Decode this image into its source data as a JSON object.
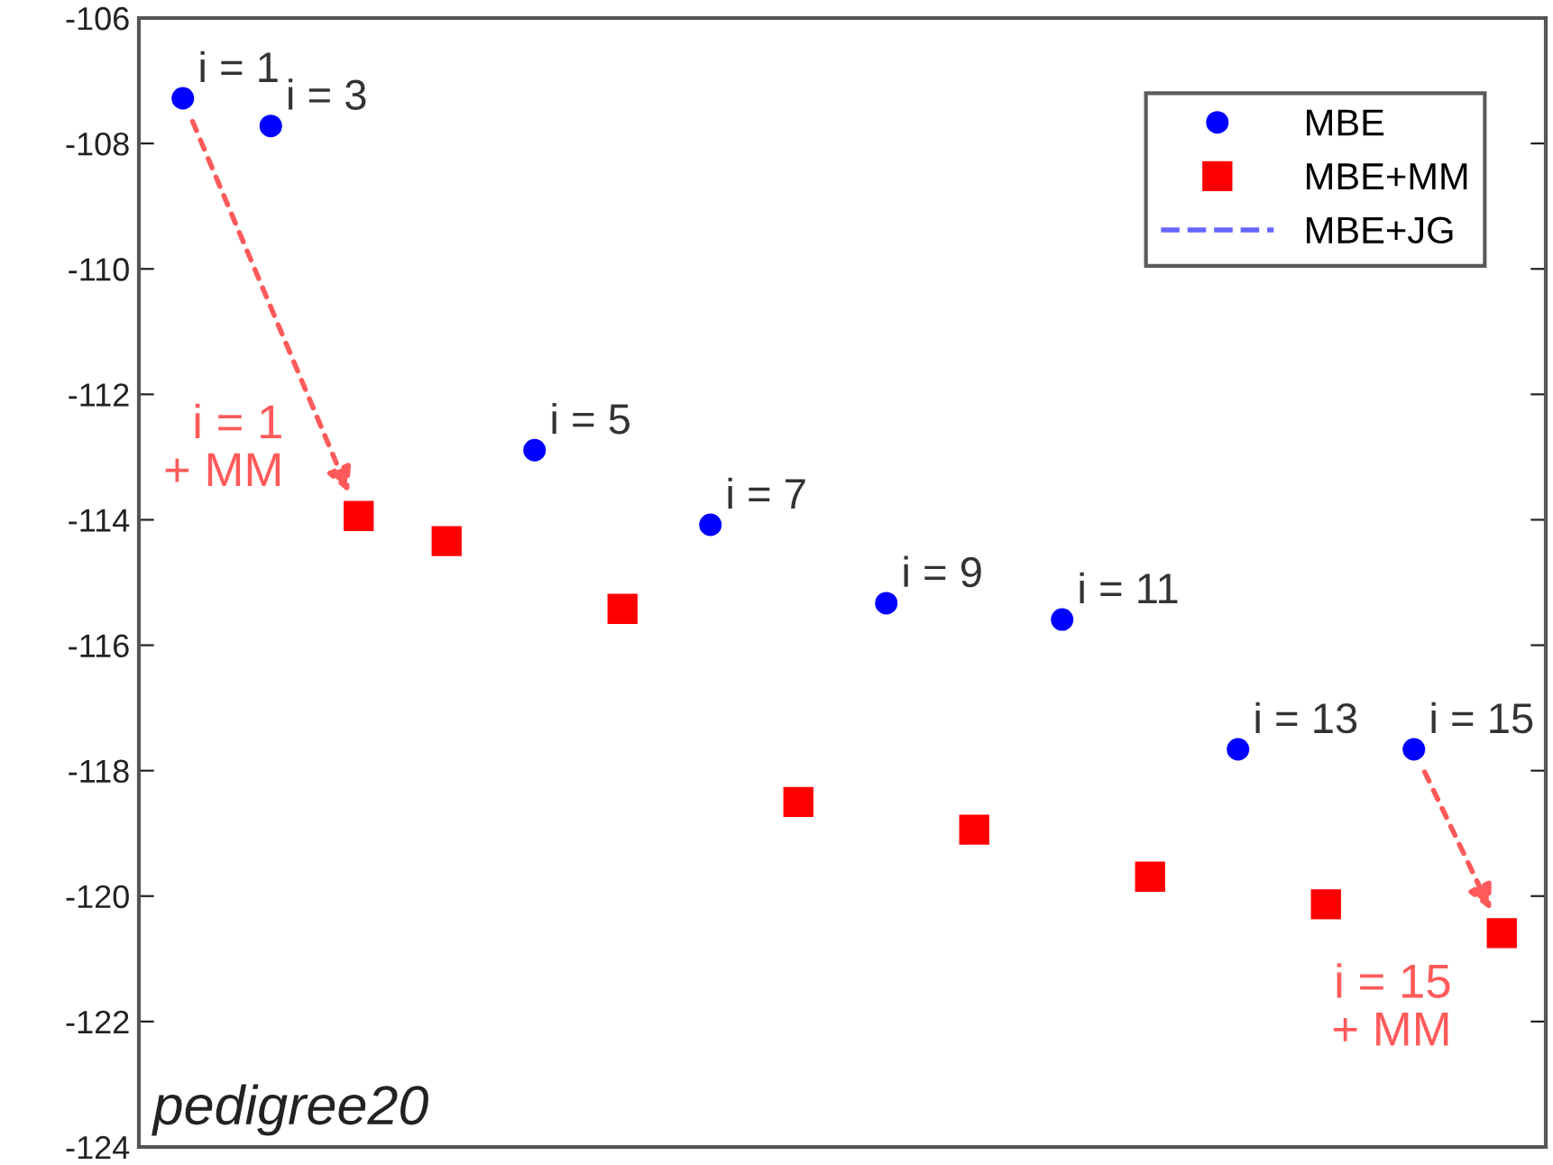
{
  "chart_data": {
    "type": "scatter",
    "categories": [
      null,
      null,
      null,
      null,
      null,
      null,
      null,
      null,
      null,
      null,
      null,
      null,
      null,
      null,
      null,
      null
    ],
    "ylim": [
      -124,
      -106
    ],
    "yticks": [
      -124,
      -122,
      -120,
      -118,
      -116,
      -114,
      -112,
      -110,
      -108,
      -106
    ],
    "grid": false,
    "legend": "top right",
    "series": [
      {
        "name": "MBE",
        "marker": "circle",
        "color": "#0000ff",
        "values": [
          -107.28,
          -107.72,
          null,
          null,
          -112.89,
          null,
          -114.08,
          null,
          -115.33,
          null,
          -115.59,
          null,
          -117.66,
          null,
          -117.66,
          null
        ]
      },
      {
        "name": "MBE+MM",
        "marker": "square",
        "color": "#ff0000",
        "values": [
          null,
          null,
          -113.94,
          -114.34,
          null,
          -115.42,
          null,
          -118.5,
          null,
          -118.94,
          null,
          -119.69,
          null,
          -120.13,
          null,
          -120.59
        ]
      },
      {
        "name": "MBE+JG",
        "type": "line",
        "line_style": "dashed",
        "color": "#6666ff",
        "values": [
          null,
          null,
          null,
          null,
          null,
          null,
          null,
          null,
          null,
          null,
          null,
          null,
          null,
          null,
          null,
          null
        ]
      }
    ],
    "annotations": [
      "pedigree20",
      "i = 1",
      "i = 3",
      "i = 5",
      "i = 7",
      "i = 9",
      "i = 11",
      "i = 13",
      "i = 15",
      "i = 1\n+ MM",
      "i = 15\n+ MM"
    ]
  }
}
